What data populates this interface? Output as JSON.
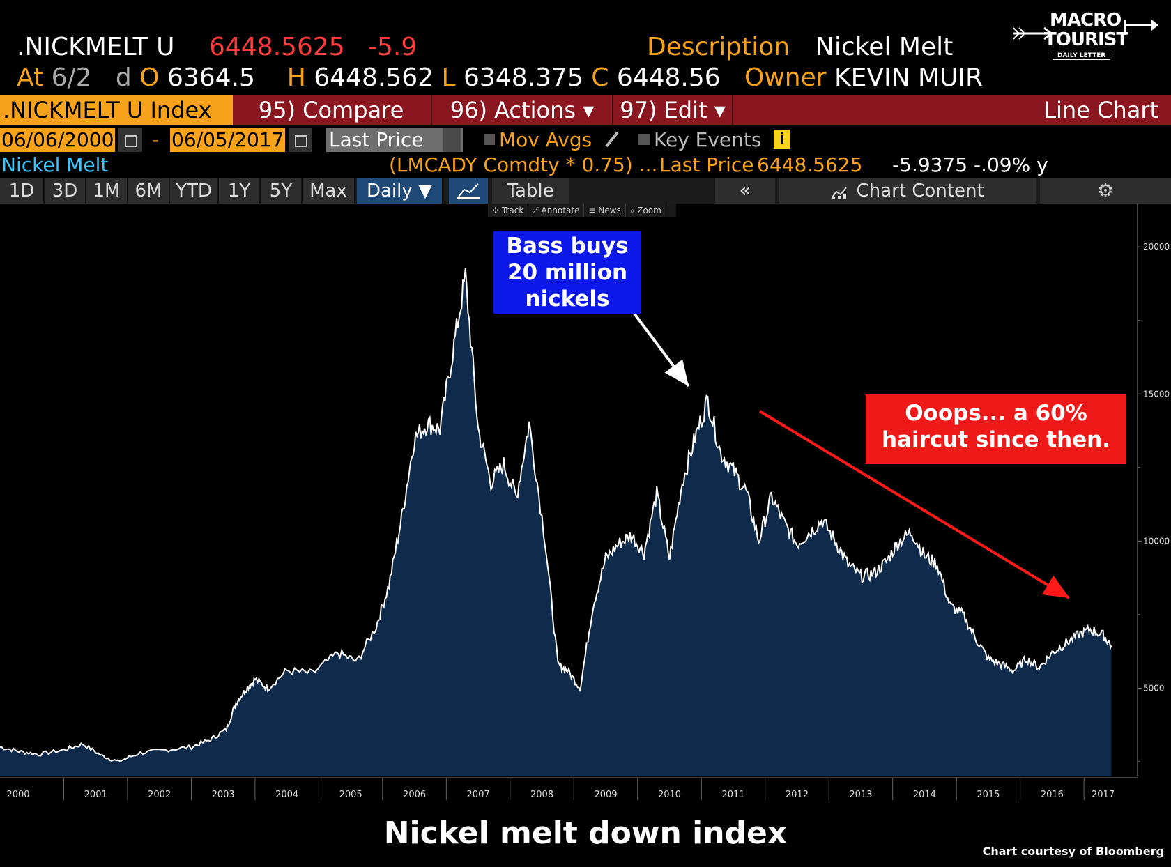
{
  "header": {
    "ticker": ".NICKMELT U",
    "last_price": "6448.5625",
    "change": "-5.9",
    "description_label": "Description",
    "description_value": "Nickel Melt",
    "at_label": "At",
    "at_value": "6/2",
    "d_label": "d",
    "open_label": "O",
    "open_value": "6364.5",
    "high_label": "H",
    "high_value": "6448.562",
    "low_label": "L",
    "low_value": "6348.375",
    "close_label": "C",
    "close_value": "6448.56",
    "owner_label": "Owner",
    "owner_value": "KEVIN MUIR"
  },
  "logo": {
    "line1": "MACRO",
    "line2": "TOURIST",
    "line3": "DAILY LETTER"
  },
  "toolbar": {
    "title": ".NICKMELT U Index",
    "compare": "95) Compare",
    "actions": "96) Actions ▾",
    "edit": "97) Edit ▾",
    "chart_type": "Line Chart"
  },
  "range": {
    "start_date": "06/06/2000",
    "dash": "-",
    "end_date": "06/05/2017",
    "field": "Last Price",
    "mov_avgs": "Mov Avgs",
    "key_events": "Key Events",
    "info": "i"
  },
  "security": {
    "name": "Nickel Melt",
    "formula": "(LMCADY Comdty * 0.75) ...",
    "last_label": "Last Price",
    "last_value": "6448.5625",
    "change": "-5.9375  -.09% y"
  },
  "timeframes": [
    "1D",
    "3D",
    "1M",
    "6M",
    "YTD",
    "1Y",
    "5Y",
    "Max"
  ],
  "timeframe_selected": "Daily ▼",
  "tabs": {
    "table": "Table",
    "chart_content": "Chart Content",
    "collapse": "«"
  },
  "mini_toolbar": [
    "✣ Track",
    "⟋ Annotate",
    "≡ News",
    "⌕ Zoom"
  ],
  "annotations": {
    "blue": [
      "Bass buys",
      "20 million",
      "nickels"
    ],
    "red": [
      "Ooops... a 60%",
      "haircut since then."
    ]
  },
  "caption": "Nickel melt down index",
  "credit": "Chart courtesy of Bloomberg",
  "colors": {
    "orange": "#f7a21b",
    "red_bar": "#8a1620",
    "area_fill": "#0f2a4a",
    "blue_box": "#0c18e8",
    "red_box": "#ee1a1a"
  },
  "chart_data": {
    "type": "area",
    "x": [
      2000.0,
      2000.3,
      2000.6,
      2001.0,
      2001.3,
      2001.6,
      2001.85,
      2002.2,
      2002.6,
      2003.0,
      2003.3,
      2003.55,
      2003.7,
      2003.85,
      2004.0,
      2004.2,
      2004.5,
      2004.9,
      2005.3,
      2005.6,
      2005.9,
      2006.1,
      2006.3,
      2006.5,
      2006.7,
      2006.9,
      2007.1,
      2007.3,
      2007.5,
      2007.7,
      2007.9,
      2008.1,
      2008.3,
      2008.55,
      2008.75,
      2008.9,
      2009.1,
      2009.3,
      2009.5,
      2009.7,
      2009.9,
      2010.1,
      2010.3,
      2010.5,
      2010.7,
      2010.9,
      2011.1,
      2011.3,
      2011.5,
      2011.7,
      2011.9,
      2012.1,
      2012.3,
      2012.5,
      2012.7,
      2012.9,
      2013.1,
      2013.3,
      2013.5,
      2013.7,
      2013.9,
      2014.1,
      2014.3,
      2014.5,
      2014.7,
      2014.9,
      2015.1,
      2015.3,
      2015.5,
      2015.7,
      2015.9,
      2016.1,
      2016.3,
      2016.5,
      2016.7,
      2016.9,
      2017.1,
      2017.3,
      2017.43
    ],
    "values": [
      3000,
      2850,
      2750,
      2900,
      3100,
      2700,
      2500,
      2800,
      2900,
      3000,
      3250,
      3600,
      4500,
      4950,
      5300,
      5000,
      5600,
      5500,
      6200,
      5900,
      7100,
      8500,
      10800,
      13500,
      14000,
      13800,
      16400,
      19000,
      13800,
      12000,
      12600,
      11500,
      14000,
      10000,
      5800,
      5600,
      5000,
      7800,
      9400,
      9900,
      10200,
      9600,
      11600,
      9400,
      12000,
      13500,
      14800,
      13000,
      12400,
      11700,
      10000,
      11500,
      10600,
      9900,
      10300,
      10700,
      10000,
      9200,
      8800,
      8900,
      9300,
      10000,
      10300,
      9500,
      9200,
      7800,
      7500,
      6700,
      6000,
      5800,
      5600,
      6000,
      5700,
      6200,
      6500,
      6800,
      7000,
      6800,
      6450
    ],
    "ylim": [
      2000,
      21000
    ],
    "xlim": [
      2000.0,
      2017.6
    ],
    "y_ticks": [
      5000,
      10000,
      15000,
      20000
    ],
    "x_ticks": [
      "2000",
      "2001",
      "2002",
      "2003",
      "2004",
      "2005",
      "2006",
      "2007",
      "2008",
      "2009",
      "2010",
      "2011",
      "2012",
      "2013",
      "2014",
      "2015",
      "2016",
      "2017"
    ],
    "grid": false
  }
}
